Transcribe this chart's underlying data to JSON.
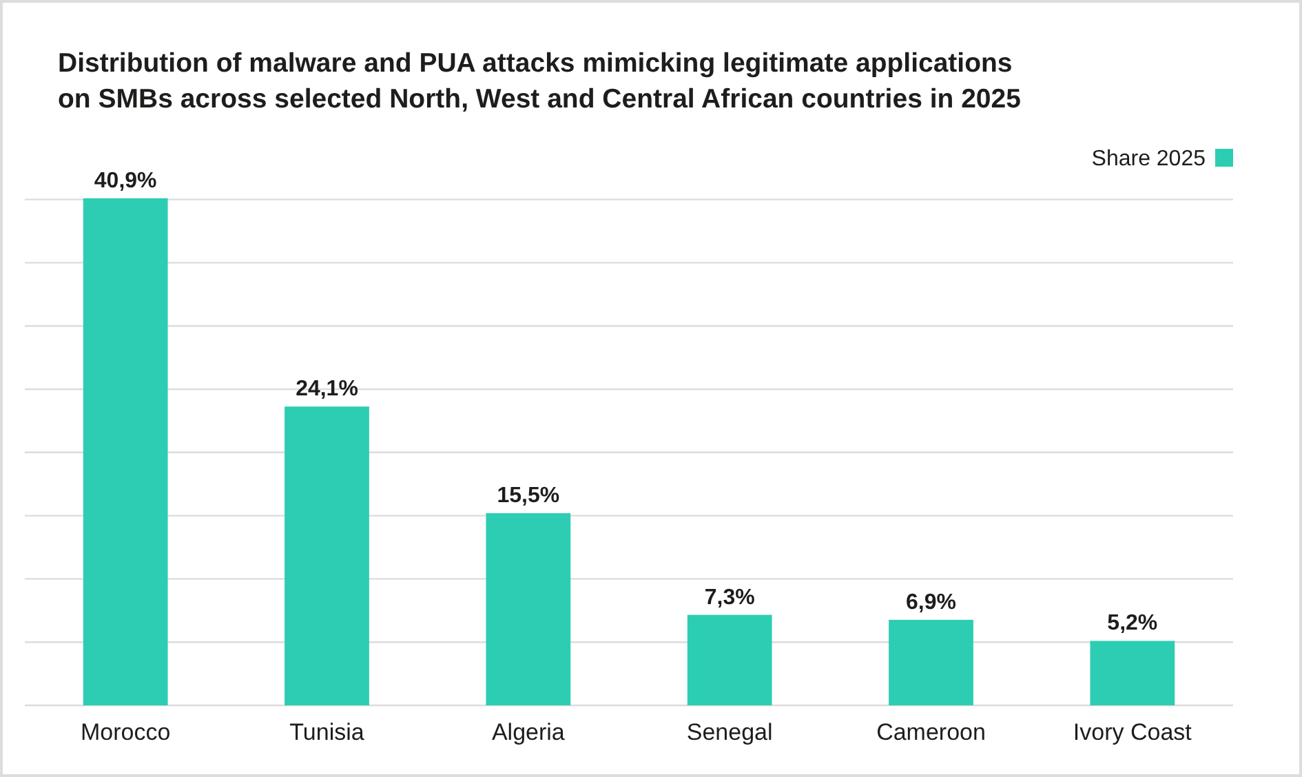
{
  "chart_data": {
    "type": "bar",
    "title": "Distribution of malware and PUA attacks mimicking legitimate applications\non SMBs across selected North, West and Central African countries in 2025",
    "categories": [
      "Morocco",
      "Tunisia",
      "Algeria",
      "Senegal",
      "Cameroon",
      "Ivory Coast"
    ],
    "series": [
      {
        "name": "Share 2025",
        "color": "#2dcdb3",
        "values": [
          40.9,
          24.1,
          15.5,
          7.3,
          6.9,
          5.2
        ],
        "value_labels": [
          "40,9%",
          "24,1%",
          "15,5%",
          "7,3%",
          "6,9%",
          "5,2%"
        ]
      }
    ],
    "ylim": [
      0,
      41
    ],
    "yticks": [
      {
        "value": 0,
        "label": null
      },
      {
        "value": 5.1,
        "label": null
      },
      {
        "value": 10.2,
        "label": null
      },
      {
        "value": 15.3,
        "label": null
      },
      {
        "value": 20.4,
        "label": null
      },
      {
        "value": 25.5,
        "label": null
      },
      {
        "value": 30.6,
        "label": null
      },
      {
        "value": 35.7,
        "label": null
      },
      {
        "value": 40.8,
        "label": null
      }
    ],
    "grid": "y",
    "tick_labels": "x",
    "legend": "top right"
  }
}
